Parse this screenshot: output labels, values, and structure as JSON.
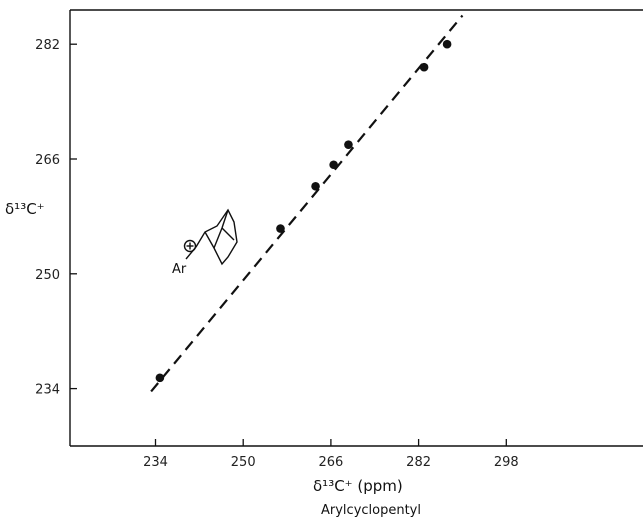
{
  "chart_data": {
    "type": "scatter",
    "xlabel": "δ¹³C⁺ (ppm)",
    "xlabel_sub": "Arylcyclopentyl",
    "ylabel": "δ¹³C⁺",
    "xlim": [
      226,
      302
    ],
    "ylim": [
      226,
      286
    ],
    "x_ticks": [
      234,
      250,
      266,
      282,
      298
    ],
    "y_ticks": [
      234,
      250,
      266,
      282
    ],
    "x_tick_labels": [
      "234",
      "250",
      "266",
      "282",
      "298"
    ],
    "y_tick_labels": [
      "234",
      "250",
      "266",
      "282"
    ],
    "points": [
      {
        "x": 234.8,
        "y": 235.5
      },
      {
        "x": 256.8,
        "y": 256.3
      },
      {
        "x": 263.2,
        "y": 262.2
      },
      {
        "x": 266.5,
        "y": 265.2
      },
      {
        "x": 269.2,
        "y": 268.0
      },
      {
        "x": 283.0,
        "y": 278.8
      },
      {
        "x": 287.2,
        "y": 282.0
      }
    ],
    "fit_line": {
      "x": [
        233.2,
        290.0
      ],
      "y": [
        233.6,
        286.0
      ],
      "style": "dashed"
    },
    "inset_label": "Ar",
    "grid": false,
    "colors": {
      "points": "#111111",
      "line": "#111111",
      "axes": "#111111"
    }
  }
}
